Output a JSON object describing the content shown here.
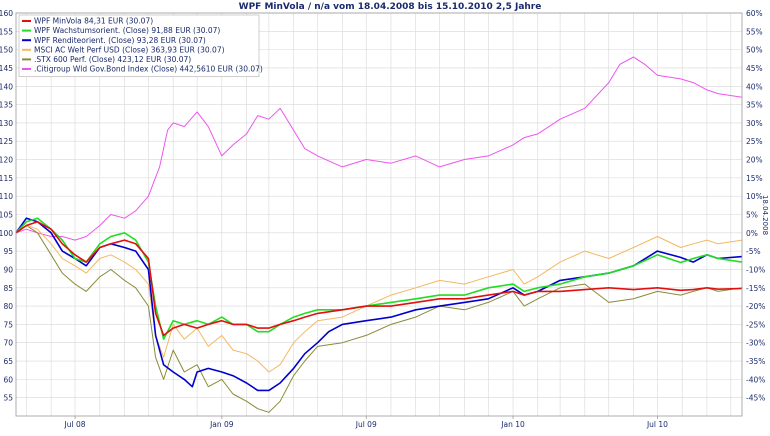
{
  "chart_data": {
    "type": "line",
    "title": "WPF MinVola / n/a vom 18.04.2008 bis 15.10.2010 2,5 Jahre",
    "side_label": "18.04.2008",
    "x_ticks": [
      "Jul 08",
      "Jan 09",
      "Jul 09",
      "Jan 10",
      "Jul 10"
    ],
    "x_tick_dates": [
      "2008-07-01",
      "2009-01-01",
      "2009-07-01",
      "2010-01-01",
      "2010-07-01"
    ],
    "x_range": [
      "2008-04-18",
      "2010-10-15"
    ],
    "ylim": [
      50,
      160
    ],
    "y_ticks": [
      55,
      60,
      65,
      70,
      75,
      80,
      85,
      90,
      95,
      100,
      105,
      110,
      115,
      120,
      125,
      130,
      135,
      140,
      145,
      150,
      155,
      160
    ],
    "y2_ticks": [
      "-45%",
      "-40%",
      "-35%",
      "-30%",
      "-25%",
      "-20%",
      "-15%",
      "-10%",
      "-5%",
      "0%",
      "5%",
      "10%",
      "15%",
      "20%",
      "25%",
      "30%",
      "35%",
      "40%",
      "45%",
      "50%",
      "55%",
      "60%"
    ],
    "grid": true,
    "legend_position": "top-left",
    "series": [
      {
        "name": "WPF MinVola 84,31 EUR (30.07)",
        "color": "#e01010",
        "dates": [
          "2008-04-18",
          "2008-05-01",
          "2008-05-15",
          "2008-06-01",
          "2008-06-15",
          "2008-07-01",
          "2008-07-15",
          "2008-08-01",
          "2008-08-15",
          "2008-09-01",
          "2008-09-15",
          "2008-10-01",
          "2008-10-10",
          "2008-10-20",
          "2008-11-01",
          "2008-11-15",
          "2008-12-01",
          "2008-12-15",
          "2009-01-01",
          "2009-01-15",
          "2009-02-01",
          "2009-02-15",
          "2009-03-01",
          "2009-03-15",
          "2009-04-01",
          "2009-04-15",
          "2009-05-01",
          "2009-06-01",
          "2009-07-01",
          "2009-08-01",
          "2009-09-01",
          "2009-10-01",
          "2009-11-01",
          "2009-12-01",
          "2010-01-01",
          "2010-01-15",
          "2010-02-01",
          "2010-03-01",
          "2010-04-01",
          "2010-05-01",
          "2010-06-01",
          "2010-07-01",
          "2010-07-30",
          "2010-08-15",
          "2010-09-01",
          "2010-09-15",
          "2010-10-15"
        ],
        "values": [
          100,
          102,
          103,
          101,
          97,
          94,
          92,
          96,
          97,
          98,
          97,
          93,
          78,
          72,
          74,
          75,
          74,
          75,
          76,
          75,
          75,
          74,
          74,
          75,
          76,
          77,
          78,
          79,
          80,
          80,
          81,
          82,
          82,
          83,
          84,
          83,
          84,
          84,
          84.5,
          85,
          84.5,
          85,
          84.3,
          84.5,
          85,
          84.6,
          84.8
        ]
      },
      {
        "name": "WPF Wachstumsorient. (Close) 91,88 EUR (30.07)",
        "color": "#22dd22",
        "dates": [
          "2008-04-18",
          "2008-05-01",
          "2008-05-15",
          "2008-06-01",
          "2008-06-15",
          "2008-07-01",
          "2008-07-15",
          "2008-08-01",
          "2008-08-15",
          "2008-09-01",
          "2008-09-15",
          "2008-10-01",
          "2008-10-10",
          "2008-10-20",
          "2008-11-01",
          "2008-11-15",
          "2008-12-01",
          "2008-12-15",
          "2009-01-01",
          "2009-01-15",
          "2009-02-01",
          "2009-02-15",
          "2009-03-01",
          "2009-03-15",
          "2009-04-01",
          "2009-04-15",
          "2009-05-01",
          "2009-06-01",
          "2009-07-01",
          "2009-08-01",
          "2009-09-01",
          "2009-10-01",
          "2009-11-01",
          "2009-12-01",
          "2010-01-01",
          "2010-01-15",
          "2010-02-01",
          "2010-03-01",
          "2010-04-01",
          "2010-05-01",
          "2010-06-01",
          "2010-07-01",
          "2010-07-30",
          "2010-08-15",
          "2010-09-01",
          "2010-09-15",
          "2010-10-15"
        ],
        "values": [
          100,
          103,
          104,
          101,
          98,
          93,
          92,
          97,
          99,
          100,
          98,
          92,
          80,
          71,
          76,
          75,
          76,
          75,
          77,
          75,
          75,
          73,
          73,
          75,
          77,
          78,
          79,
          79,
          80,
          81,
          82,
          83,
          83,
          85,
          86,
          84,
          85,
          86,
          88,
          89,
          91,
          94,
          91.9,
          93,
          94,
          93,
          92
        ]
      },
      {
        "name": "WPF Renditeorient. (Close) 93,28 EUR (30.07)",
        "color": "#0000cc",
        "dates": [
          "2008-04-18",
          "2008-05-01",
          "2008-05-15",
          "2008-06-01",
          "2008-06-15",
          "2008-07-01",
          "2008-07-15",
          "2008-08-01",
          "2008-08-15",
          "2008-09-01",
          "2008-09-15",
          "2008-10-01",
          "2008-10-10",
          "2008-10-20",
          "2008-11-01",
          "2008-11-15",
          "2008-11-25",
          "2008-12-01",
          "2008-12-15",
          "2009-01-01",
          "2009-01-15",
          "2009-02-01",
          "2009-02-15",
          "2009-03-01",
          "2009-03-15",
          "2009-04-01",
          "2009-04-15",
          "2009-05-01",
          "2009-05-15",
          "2009-06-01",
          "2009-07-01",
          "2009-08-01",
          "2009-09-01",
          "2009-10-01",
          "2009-11-01",
          "2009-12-01",
          "2010-01-01",
          "2010-01-15",
          "2010-02-01",
          "2010-03-01",
          "2010-04-01",
          "2010-05-01",
          "2010-06-01",
          "2010-07-01",
          "2010-07-30",
          "2010-08-15",
          "2010-09-01",
          "2010-09-15",
          "2010-10-15"
        ],
        "values": [
          100,
          104,
          103,
          100,
          95,
          93,
          91,
          96,
          97,
          96,
          95,
          90,
          72,
          64,
          62,
          60,
          58,
          62,
          63,
          62,
          61,
          59,
          57,
          57,
          59,
          63,
          67,
          70,
          73,
          75,
          76,
          77,
          79,
          80,
          81,
          82,
          85,
          83,
          84,
          87,
          88,
          89,
          91,
          95,
          93.3,
          92,
          94,
          93,
          93.5
        ]
      },
      {
        "name": "MSCI AC Welt Perf USD (Close) 363,93 EUR (30.07)",
        "color": "#f4b860",
        "dates": [
          "2008-04-18",
          "2008-05-01",
          "2008-05-15",
          "2008-06-01",
          "2008-06-15",
          "2008-07-01",
          "2008-07-15",
          "2008-08-01",
          "2008-08-15",
          "2008-09-01",
          "2008-09-15",
          "2008-10-01",
          "2008-10-10",
          "2008-10-20",
          "2008-11-01",
          "2008-11-15",
          "2008-12-01",
          "2008-12-15",
          "2009-01-01",
          "2009-01-15",
          "2009-02-01",
          "2009-02-15",
          "2009-03-01",
          "2009-03-15",
          "2009-04-01",
          "2009-04-15",
          "2009-05-01",
          "2009-06-01",
          "2009-07-01",
          "2009-08-01",
          "2009-09-01",
          "2009-10-01",
          "2009-11-01",
          "2009-12-01",
          "2010-01-01",
          "2010-01-15",
          "2010-02-01",
          "2010-03-01",
          "2010-04-01",
          "2010-05-01",
          "2010-06-01",
          "2010-07-01",
          "2010-07-30",
          "2010-08-15",
          "2010-09-01",
          "2010-09-15",
          "2010-10-15"
        ],
        "values": [
          100,
          102,
          101,
          97,
          93,
          91,
          89,
          93,
          94,
          92,
          90,
          86,
          72,
          66,
          75,
          71,
          74,
          69,
          72,
          68,
          67,
          65,
          62,
          64,
          70,
          73,
          76,
          77,
          80,
          83,
          85,
          87,
          86,
          88,
          90,
          86,
          88,
          92,
          95,
          93,
          96,
          99,
          96,
          97,
          98,
          97,
          98
        ]
      },
      {
        "name": ".STX 600 Perf. (Close) 423,12 EUR (30.07)",
        "color": "#8a8a3a",
        "dates": [
          "2008-04-18",
          "2008-05-01",
          "2008-05-15",
          "2008-06-01",
          "2008-06-15",
          "2008-07-01",
          "2008-07-15",
          "2008-08-01",
          "2008-08-15",
          "2008-09-01",
          "2008-09-15",
          "2008-10-01",
          "2008-10-10",
          "2008-10-20",
          "2008-11-01",
          "2008-11-15",
          "2008-12-01",
          "2008-12-15",
          "2009-01-01",
          "2009-01-15",
          "2009-02-01",
          "2009-02-15",
          "2009-03-01",
          "2009-03-15",
          "2009-04-01",
          "2009-04-15",
          "2009-05-01",
          "2009-06-01",
          "2009-07-01",
          "2009-08-01",
          "2009-09-01",
          "2009-10-01",
          "2009-11-01",
          "2009-12-01",
          "2010-01-01",
          "2010-01-15",
          "2010-02-01",
          "2010-03-01",
          "2010-04-01",
          "2010-05-01",
          "2010-06-01",
          "2010-07-01",
          "2010-07-30",
          "2010-08-15",
          "2010-09-01",
          "2010-09-15",
          "2010-10-15"
        ],
        "values": [
          100,
          102,
          100,
          94,
          89,
          86,
          84,
          88,
          90,
          87,
          85,
          80,
          66,
          60,
          68,
          62,
          64,
          58,
          60,
          56,
          54,
          52,
          51,
          54,
          61,
          65,
          69,
          70,
          72,
          75,
          77,
          80,
          79,
          81,
          84,
          80,
          82,
          85,
          86,
          81,
          82,
          84,
          83,
          84,
          85,
          84,
          85
        ]
      },
      {
        "name": ".Citigroup Wld Gov.Bond Index (Close) 442,5610 EUR (30.07)",
        "color": "#ee55ee",
        "dates": [
          "2008-04-18",
          "2008-05-01",
          "2008-05-15",
          "2008-06-01",
          "2008-06-15",
          "2008-07-01",
          "2008-07-15",
          "2008-08-01",
          "2008-08-15",
          "2008-09-01",
          "2008-09-15",
          "2008-10-01",
          "2008-10-15",
          "2008-10-25",
          "2008-11-01",
          "2008-11-15",
          "2008-12-01",
          "2008-12-15",
          "2009-01-01",
          "2009-01-15",
          "2009-02-01",
          "2009-02-15",
          "2009-03-01",
          "2009-03-15",
          "2009-04-01",
          "2009-04-15",
          "2009-05-01",
          "2009-06-01",
          "2009-07-01",
          "2009-08-01",
          "2009-09-01",
          "2009-10-01",
          "2009-11-01",
          "2009-12-01",
          "2010-01-01",
          "2010-01-15",
          "2010-02-01",
          "2010-03-01",
          "2010-04-01",
          "2010-05-01",
          "2010-05-15",
          "2010-06-01",
          "2010-06-15",
          "2010-07-01",
          "2010-07-30",
          "2010-08-15",
          "2010-09-01",
          "2010-09-15",
          "2010-10-15"
        ],
        "values": [
          100,
          101,
          100,
          99,
          99,
          98,
          99,
          102,
          105,
          104,
          106,
          110,
          118,
          128,
          130,
          129,
          133,
          129,
          121,
          124,
          127,
          132,
          131,
          134,
          128,
          123,
          121,
          118,
          120,
          119,
          121,
          118,
          120,
          121,
          124,
          126,
          127,
          131,
          134,
          141,
          146,
          148,
          146,
          143,
          142,
          141,
          139,
          138,
          137
        ]
      }
    ]
  }
}
